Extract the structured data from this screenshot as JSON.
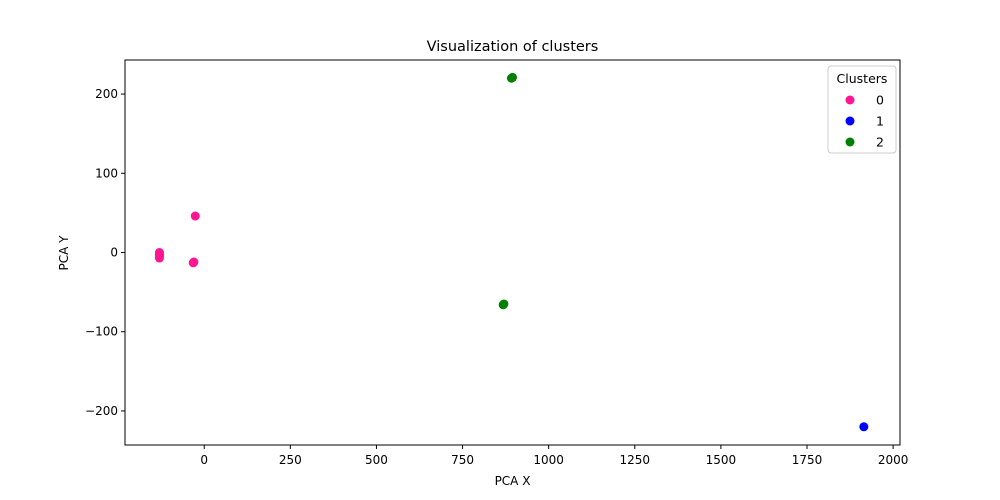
{
  "chart_data": {
    "type": "scatter",
    "title": "Visualization of clusters",
    "xlabel": "PCA X",
    "ylabel": "PCA Y",
    "xlim": [
      -230,
      2020
    ],
    "ylim": [
      -243,
      243
    ],
    "xticks": [
      0,
      250,
      500,
      750,
      1000,
      1250,
      1500,
      1750,
      2000
    ],
    "yticks": [
      -200,
      -100,
      0,
      100,
      200
    ],
    "grid": false,
    "legend": {
      "title": "Clusters",
      "placement": "top-right"
    },
    "series": [
      {
        "name": "0",
        "color": "#ff1493",
        "points": [
          [
            -130,
            0
          ],
          [
            -130,
            -2
          ],
          [
            -130,
            -4
          ],
          [
            -130,
            -5
          ],
          [
            -130,
            -7
          ],
          [
            -26,
            46
          ],
          [
            -30,
            -12
          ],
          [
            -32,
            -13
          ]
        ]
      },
      {
        "name": "1",
        "color": "#0000ff",
        "points": [
          [
            1915,
            -220
          ]
        ]
      },
      {
        "name": "2",
        "color": "#008000",
        "points": [
          [
            895,
            221
          ],
          [
            892,
            220
          ],
          [
            870,
            -65
          ],
          [
            868,
            -66
          ]
        ]
      }
    ]
  }
}
